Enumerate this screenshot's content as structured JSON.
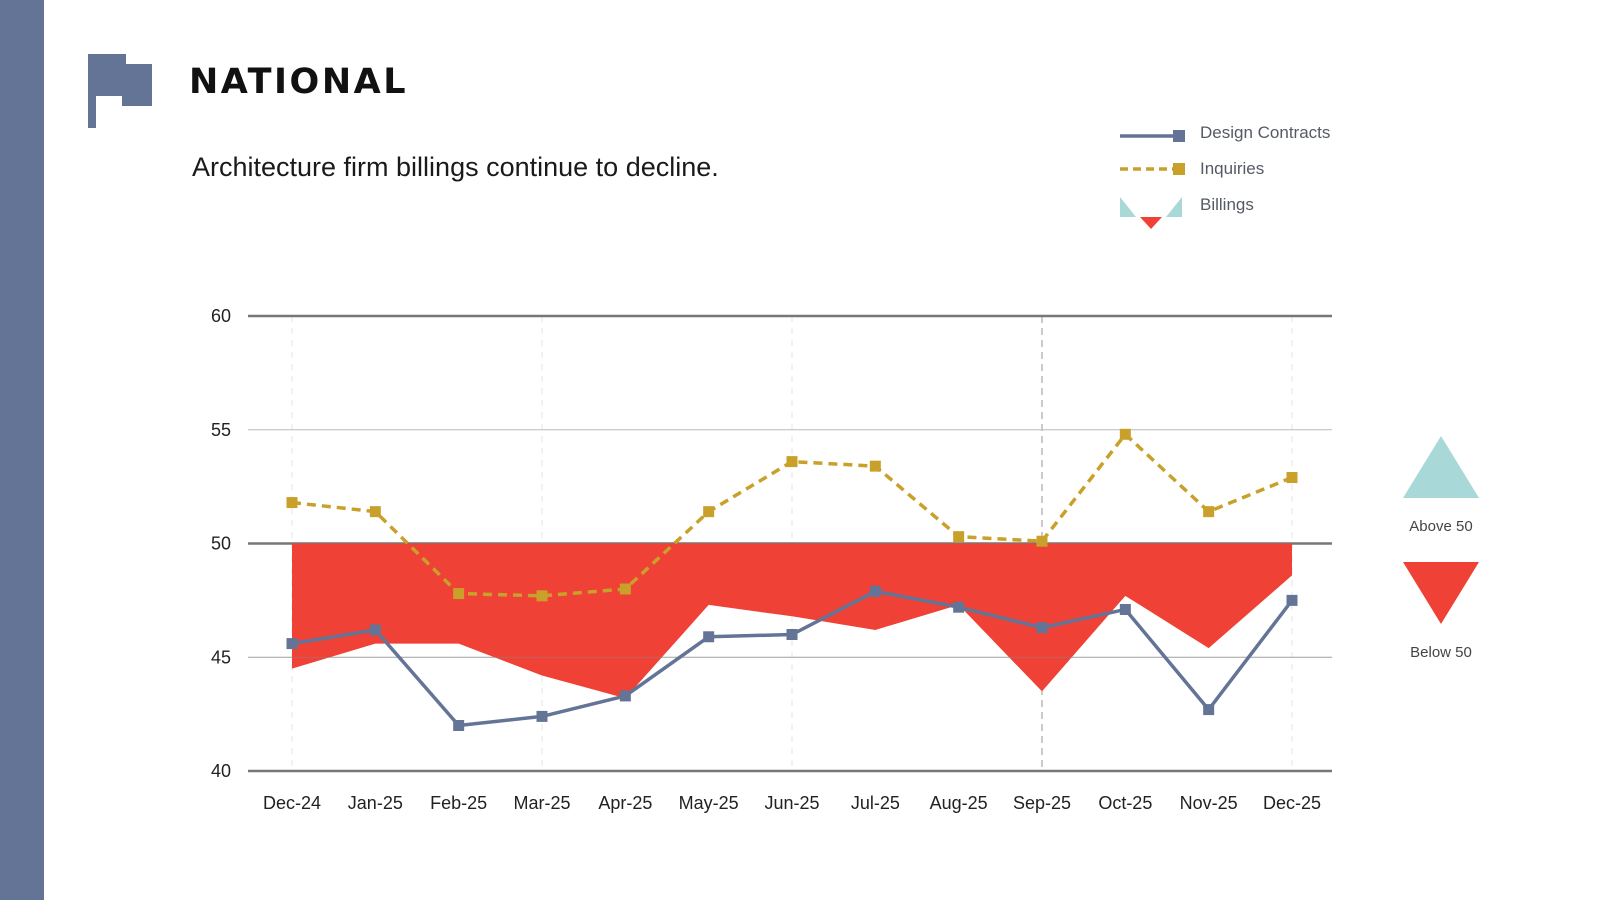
{
  "header": {
    "title": "NATIONAL",
    "subtitle": "Architecture firm billings continue to decline."
  },
  "colors": {
    "sidebar": "#647496",
    "flag": "#647496",
    "design_contracts": "#647496",
    "inquiries": "#c9a02a",
    "billings_below": "#ef4136",
    "billings_above": "#a9d8d8",
    "axis": "#777777",
    "grid": "#bbbbbb"
  },
  "icons": {
    "flag": "flag-icon"
  },
  "legend": {
    "design_contracts": "Design Contracts",
    "inquiries": "Inquiries",
    "billings": "Billings"
  },
  "side_key": {
    "above": "Above 50",
    "below": "Below 50"
  },
  "chart_data": {
    "type": "line",
    "categories": [
      "Dec-24",
      "Jan-25",
      "Feb-25",
      "Mar-25",
      "Apr-25",
      "May-25",
      "Jun-25",
      "Jul-25",
      "Aug-25",
      "Sep-25",
      "Oct-25",
      "Nov-25",
      "Dec-25"
    ],
    "yticks": [
      40,
      45,
      50,
      55,
      60
    ],
    "ylim": [
      40,
      60
    ],
    "baseline": 50,
    "grid": true,
    "legend_position": "top-right",
    "series": [
      {
        "name": "Billings",
        "type": "area",
        "values": [
          44.5,
          45.6,
          45.6,
          44.2,
          43.2,
          47.3,
          46.8,
          46.2,
          47.3,
          43.5,
          47.7,
          45.4,
          48.6
        ]
      },
      {
        "name": "Design Contracts",
        "type": "line",
        "values": [
          45.6,
          46.2,
          42.0,
          42.4,
          43.3,
          45.9,
          46.0,
          47.9,
          47.2,
          46.3,
          47.1,
          42.7,
          47.5
        ]
      },
      {
        "name": "Inquiries",
        "type": "line",
        "values": [
          51.8,
          51.4,
          47.8,
          47.7,
          48.0,
          51.4,
          53.6,
          53.4,
          50.3,
          50.1,
          54.8,
          51.4,
          52.9
        ]
      }
    ]
  }
}
